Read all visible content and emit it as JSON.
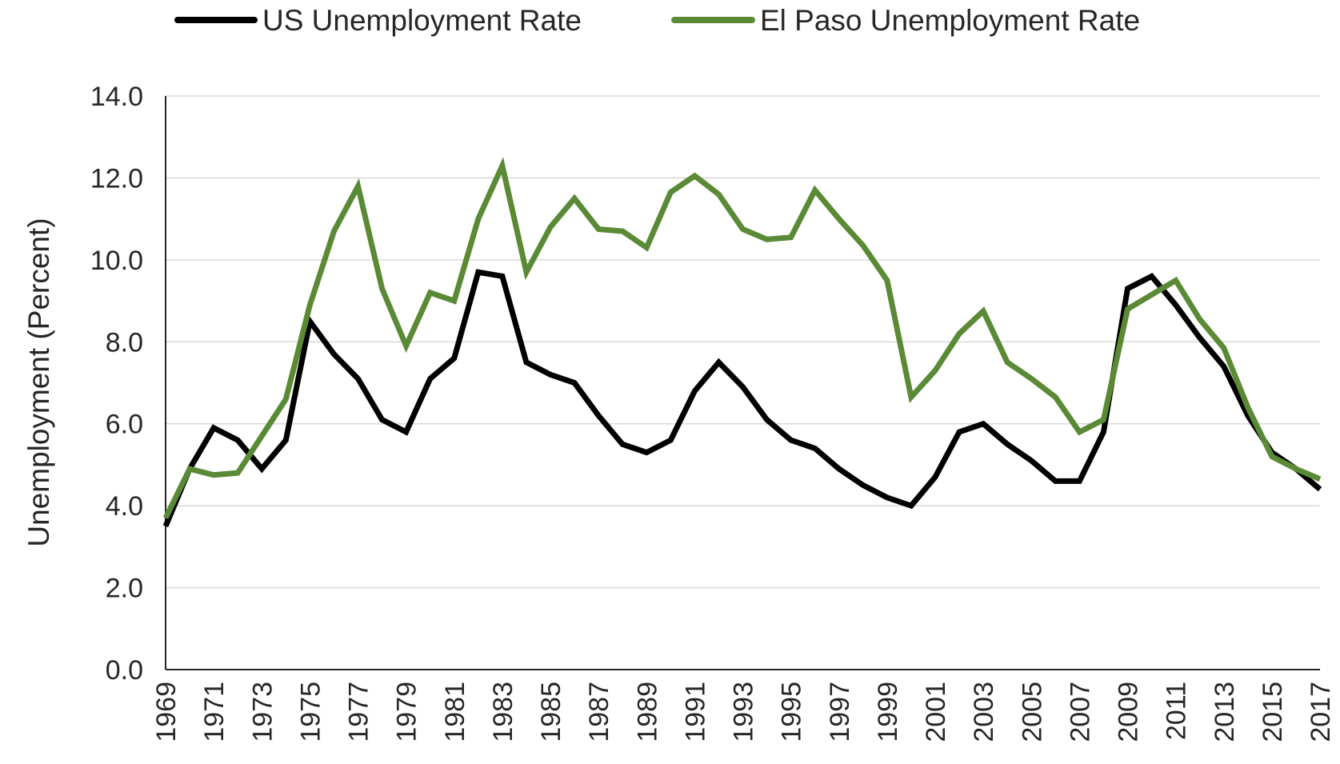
{
  "chart_data": {
    "type": "line",
    "title": "",
    "xlabel": "",
    "ylabel": "Unemployment (Percent)",
    "ylim": [
      0,
      14
    ],
    "y_ticks": [
      "0.0",
      "2.0",
      "4.0",
      "6.0",
      "8.0",
      "10.0",
      "12.0",
      "14.0"
    ],
    "x_tick_labels": [
      "1969",
      "1971",
      "1973",
      "1975",
      "1977",
      "1979",
      "1981",
      "1983",
      "1985",
      "1987",
      "1989",
      "1991",
      "1993",
      "1995",
      "1997",
      "1999",
      "2001",
      "2003",
      "2005",
      "2007",
      "2009",
      "2011",
      "2013",
      "2015",
      "2017"
    ],
    "grid": "horizontal",
    "legend_position": "top",
    "x": [
      1969,
      1970,
      1971,
      1972,
      1973,
      1974,
      1975,
      1976,
      1977,
      1978,
      1979,
      1980,
      1981,
      1982,
      1983,
      1984,
      1985,
      1986,
      1987,
      1988,
      1989,
      1990,
      1991,
      1992,
      1993,
      1994,
      1995,
      1996,
      1997,
      1998,
      1999,
      2000,
      2001,
      2002,
      2003,
      2004,
      2005,
      2006,
      2007,
      2008,
      2009,
      2010,
      2011,
      2012,
      2013,
      2014,
      2015,
      2016,
      2017
    ],
    "series": [
      {
        "name": "US Unemployment Rate",
        "color": "#000000",
        "values": [
          3.5,
          4.9,
          5.9,
          5.6,
          4.9,
          5.6,
          8.5,
          7.7,
          7.1,
          6.1,
          5.8,
          7.1,
          7.6,
          9.7,
          9.6,
          7.5,
          7.2,
          7.0,
          6.2,
          5.5,
          5.3,
          5.6,
          6.8,
          7.5,
          6.9,
          6.1,
          5.6,
          5.4,
          4.9,
          4.5,
          4.2,
          4.0,
          4.7,
          5.8,
          6.0,
          5.5,
          5.1,
          4.6,
          4.6,
          5.8,
          9.3,
          9.6,
          8.9,
          8.1,
          7.4,
          6.2,
          5.3,
          4.9,
          4.4
        ]
      },
      {
        "name": "El Paso Unemployment Rate",
        "color": "#5a8a35",
        "values": [
          3.7,
          4.9,
          4.75,
          4.8,
          5.7,
          6.6,
          8.9,
          10.7,
          11.8,
          9.3,
          7.9,
          9.2,
          9.0,
          11.0,
          12.3,
          9.7,
          10.8,
          11.5,
          10.75,
          10.7,
          10.3,
          11.65,
          12.05,
          11.6,
          10.75,
          10.5,
          10.55,
          11.7,
          11.0,
          10.35,
          9.5,
          6.65,
          7.3,
          8.2,
          8.75,
          7.5,
          7.1,
          6.65,
          5.8,
          6.1,
          8.8,
          9.15,
          9.5,
          8.55,
          7.85,
          6.4,
          5.2,
          4.9,
          4.65
        ]
      }
    ]
  }
}
